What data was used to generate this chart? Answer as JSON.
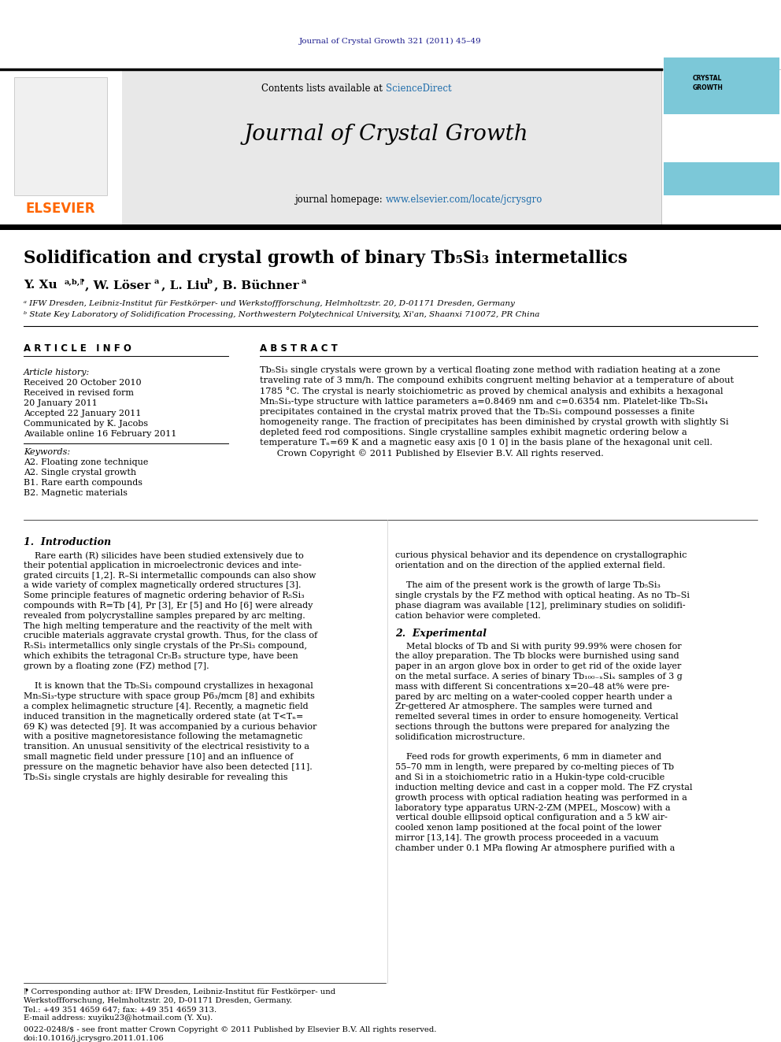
{
  "journal_info": "Journal of Crystal Growth 321 (2011) 45–49",
  "journal_name": "Journal of Crystal Growth",
  "sciencedirect_color": "#1F6DAB",
  "homepage_color": "#1F6DAB",
  "elsevier_color": "#FF6600",
  "title": "Solidification and crystal growth of binary Tb₅Si₃ intermetallics",
  "affil_a": "ᵃ IFW Dresden, Leibniz-Institut für Festkörper- und Werkstoffforschung, Helmholtzstr. 20, D-01171 Dresden, Germany",
  "affil_b": "ᵇ State Key Laboratory of Solidification Processing, Northwestern Polytechnical University, Xi'an, Shaanxi 710072, PR China",
  "article_info_header": "A R T I C L E   I N F O",
  "abstract_header": "A B S T R A C T",
  "article_history": "Article history:",
  "received": "Received 20 October 2010",
  "received_revised1": "Received in revised form",
  "received_revised2": "20 January 2011",
  "accepted": "Accepted 22 January 2011",
  "communicated": "Communicated by K. Jacobs",
  "available": "Available online 16 February 2011",
  "keywords_header": "Keywords:",
  "kw1": "A2. Floating zone technique",
  "kw2": "A2. Single crystal growth",
  "kw3": "B1. Rare earth compounds",
  "kw4": "B2. Magnetic materials",
  "section1_title": "1.  Introduction",
  "section2_title": "2.  Experimental",
  "journal_info_color": "#1a1a8c",
  "footer_issn": "0022-0248/$ - see front matter Crown Copyright © 2011 Published by Elsevier B.V. All rights reserved.",
  "footer_doi": "doi:10.1016/j.jcrysgro.2011.01.106",
  "abstract_lines": [
    "Tb₅Si₃ single crystals were grown by a vertical floating zone method with radiation heating at a zone",
    "traveling rate of 3 mm/h. The compound exhibits congruent melting behavior at a temperature of about",
    "1785 °C. The crystal is nearly stoichiometric as proved by chemical analysis and exhibits a hexagonal",
    "Mn₅Si₃-type structure with lattice parameters a=0.8469 nm and c=0.6354 nm. Platelet-like Tb₅Si₄",
    "precipitates contained in the crystal matrix proved that the Tb₅Si₃ compound possesses a finite",
    "homogeneity range. The fraction of precipitates has been diminished by crystal growth with slightly Si",
    "depleted feed rod compositions. Single crystalline samples exhibit magnetic ordering below a",
    "temperature Tₙ=69 K and a magnetic easy axis [0 1 0] in the basis plane of the hexagonal unit cell.",
    "      Crown Copyright © 2011 Published by Elsevier B.V. All rights reserved."
  ],
  "col1_lines": [
    "    Rare earth (R) silicides have been studied extensively due to",
    "their potential application in microelectronic devices and inte-",
    "grated circuits [1,2]. R–Si intermetallic compounds can also show",
    "a wide variety of complex magnetically ordered structures [3].",
    "Some principle features of magnetic ordering behavior of R₅Si₃",
    "compounds with R=Tb [4], Pr [3], Er [5] and Ho [6] were already",
    "revealed from polycrystalline samples prepared by arc melting.",
    "The high melting temperature and the reactivity of the melt with",
    "crucible materials aggravate crystal growth. Thus, for the class of",
    "R₅Si₃ intermetallics only single crystals of the Pr₅Si₃ compound,",
    "which exhibits the tetragonal Cr₅B₃ structure type, have been",
    "grown by a floating zone (FZ) method [7].",
    "",
    "    It is known that the Tb₅Si₃ compound crystallizes in hexagonal",
    "Mn₅Si₃-type structure with space group P6₃/mcm [8] and exhibits",
    "a complex helimagnetic structure [4]. Recently, a magnetic field",
    "induced transition in the magnetically ordered state (at T<Tₙ=",
    "69 K) was detected [9]. It was accompanied by a curious behavior",
    "with a positive magnetoresistance following the metamagnetic",
    "transition. An unusual sensitivity of the electrical resistivity to a",
    "small magnetic field under pressure [10] and an influence of",
    "pressure on the magnetic behavior have also been detected [11].",
    "Tb₅Si₃ single crystals are highly desirable for revealing this"
  ],
  "col2_intro_lines": [
    "curious physical behavior and its dependence on crystallographic",
    "orientation and on the direction of the applied external field.",
    "",
    "    The aim of the present work is the growth of large Tb₅Si₃",
    "single crystals by the FZ method with optical heating. As no Tb–Si",
    "phase diagram was available [12], preliminary studies on solidifi-",
    "cation behavior were completed."
  ],
  "col2_exp_lines": [
    "    Metal blocks of Tb and Si with purity 99.99% were chosen for",
    "the alloy preparation. The Tb blocks were burnished using sand",
    "paper in an argon glove box in order to get rid of the oxide layer",
    "on the metal surface. A series of binary Tb₁₀₀₋ₓSiₓ samples of 3 g",
    "mass with different Si concentrations x=20–48 at% were pre-",
    "pared by arc melting on a water-cooled copper hearth under a",
    "Zr-gettered Ar atmosphere. The samples were turned and",
    "remelted several times in order to ensure homogeneity. Vertical",
    "sections through the buttons were prepared for analyzing the",
    "solidification microstructure.",
    "",
    "    Feed rods for growth experiments, 6 mm in diameter and",
    "55–70 mm in length, were prepared by co-melting pieces of Tb",
    "and Si in a stoichiometric ratio in a Hukin-type cold-crucible",
    "induction melting device and cast in a copper mold. The FZ crystal",
    "growth process with optical radiation heating was performed in a",
    "laboratory type apparatus URN-2-ZM (MPEL, Moscow) with a",
    "vertical double ellipsoid optical configuration and a 5 kW air-",
    "cooled xenon lamp positioned at the focal point of the lower",
    "mirror [13,14]. The growth process proceeded in a vacuum",
    "chamber under 0.1 MPa flowing Ar atmosphere purified with a"
  ],
  "footer_lines": [
    "⁋ Corresponding author at: IFW Dresden, Leibniz-Institut für Festkörper- und",
    "Werkstoffforschung, Helmholtzstr. 20, D-01171 Dresden, Germany.",
    "Tel.: +49 351 4659 647; fax: +49 351 4659 313.",
    "E-mail address: xuyiku23@hotmail.com (Y. Xu)."
  ]
}
